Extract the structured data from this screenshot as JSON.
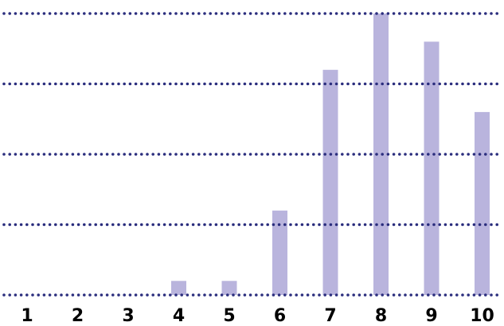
{
  "chart_data": {
    "type": "bar",
    "categories": [
      "1",
      "2",
      "3",
      "4",
      "5",
      "6",
      "7",
      "8",
      "9",
      "10"
    ],
    "values": [
      0,
      0,
      0,
      0.2,
      0.2,
      1.2,
      3.2,
      4.0,
      3.6,
      2.6
    ],
    "title": "",
    "xlabel": "",
    "ylabel": "",
    "ylim": [
      0,
      4
    ],
    "grid": true,
    "legend": "none"
  },
  "colors": {
    "bar": "#b9b4dd",
    "gridline": "#2b2e7e",
    "tick_label": "#000000"
  }
}
